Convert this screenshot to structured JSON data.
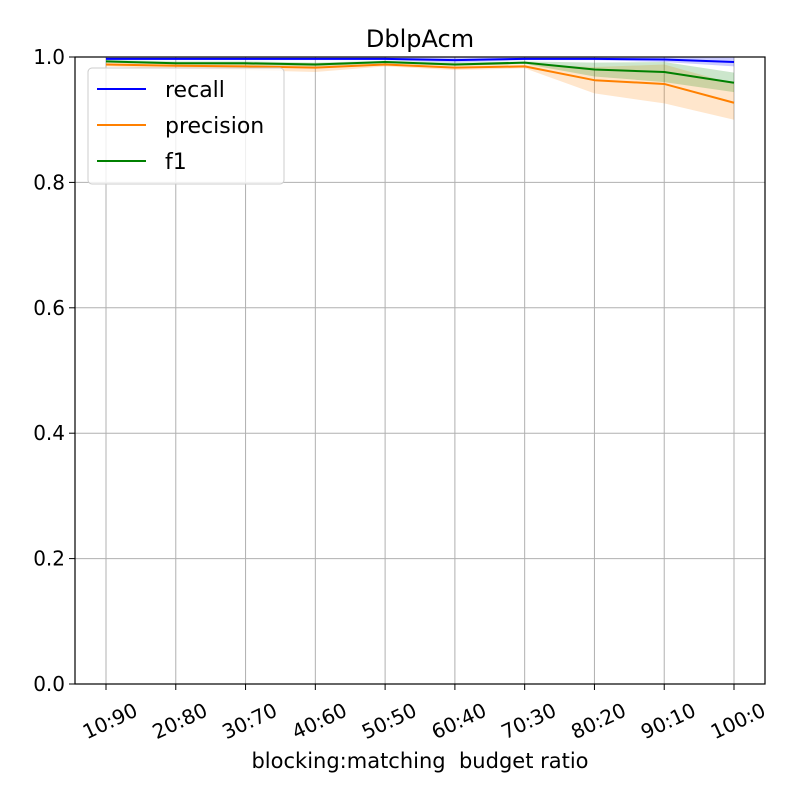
{
  "chart_data": {
    "type": "line",
    "title": "DblpAcm",
    "xlabel": "blocking:matching  budget ratio",
    "ylabel": "",
    "categories": [
      "10:90",
      "20:80",
      "30:70",
      "40:60",
      "50:50",
      "60:40",
      "70:30",
      "80:20",
      "90:10",
      "100:0"
    ],
    "ylim": [
      0.0,
      1.0
    ],
    "yticks": [
      "0.0",
      "0.2",
      "0.4",
      "0.6",
      "0.8",
      "1.0"
    ],
    "grid": true,
    "legend_position": "upper-left",
    "series": [
      {
        "name": "recall",
        "color": "#0000ff",
        "values": [
          0.997,
          0.997,
          0.997,
          0.997,
          0.997,
          0.995,
          0.997,
          0.997,
          0.996,
          0.992
        ],
        "lower": [
          0.995,
          0.995,
          0.995,
          0.995,
          0.995,
          0.991,
          0.995,
          0.995,
          0.992,
          0.985
        ],
        "upper": [
          0.999,
          0.999,
          0.999,
          0.999,
          0.999,
          0.999,
          0.999,
          0.999,
          1.0,
          0.999
        ]
      },
      {
        "name": "precision",
        "color": "#ff8000",
        "values": [
          0.988,
          0.986,
          0.985,
          0.983,
          0.988,
          0.983,
          0.985,
          0.963,
          0.957,
          0.927
        ],
        "lower": [
          0.985,
          0.981,
          0.979,
          0.976,
          0.985,
          0.979,
          0.982,
          0.942,
          0.926,
          0.9
        ],
        "upper": [
          0.992,
          0.991,
          0.991,
          0.99,
          0.992,
          0.988,
          0.988,
          0.984,
          0.988,
          0.957
        ]
      },
      {
        "name": "f1",
        "color": "#008000",
        "values": [
          0.993,
          0.99,
          0.99,
          0.988,
          0.992,
          0.988,
          0.991,
          0.98,
          0.976,
          0.959
        ],
        "lower": [
          0.991,
          0.988,
          0.987,
          0.985,
          0.99,
          0.986,
          0.989,
          0.969,
          0.96,
          0.944
        ],
        "upper": [
          0.995,
          0.993,
          0.993,
          0.991,
          0.994,
          0.991,
          0.993,
          0.991,
          0.992,
          0.975
        ]
      }
    ]
  }
}
